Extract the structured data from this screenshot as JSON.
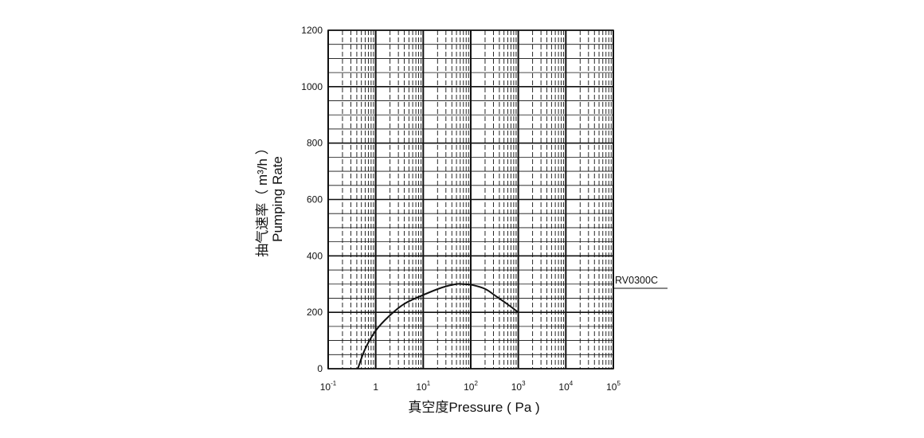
{
  "chart_data": {
    "type": "line",
    "xlabel": "真空度Pressure ( Pa )",
    "ylabel_line1": "抽气速率（ m³/h ）",
    "ylabel_line2": "Pumping Rate",
    "x_scale": "log",
    "xlim": [
      0.1,
      100000
    ],
    "ylim": [
      0,
      1200
    ],
    "grid": true,
    "x_ticks": [
      {
        "base": "10",
        "exp": "-1"
      },
      {
        "base": "1",
        "exp": ""
      },
      {
        "base": "10",
        "exp": "1"
      },
      {
        "base": "10",
        "exp": "2"
      },
      {
        "base": "10",
        "exp": "3"
      },
      {
        "base": "10",
        "exp": "4"
      },
      {
        "base": "10",
        "exp": "5"
      }
    ],
    "y_ticks": [
      "0",
      "200",
      "400",
      "600",
      "800",
      "1000",
      "1200"
    ],
    "series": [
      {
        "name": "RV0300C",
        "color": "#111111",
        "x": [
          0.42,
          0.6,
          1,
          1.9,
          4,
          10.5,
          25,
          49,
          70,
          107,
          200,
          340,
          600,
          1000
        ],
        "y": [
          0,
          70,
          135,
          186,
          230,
          263,
          288,
          300,
          300,
          297,
          283,
          257,
          228,
          200
        ]
      }
    ]
  }
}
